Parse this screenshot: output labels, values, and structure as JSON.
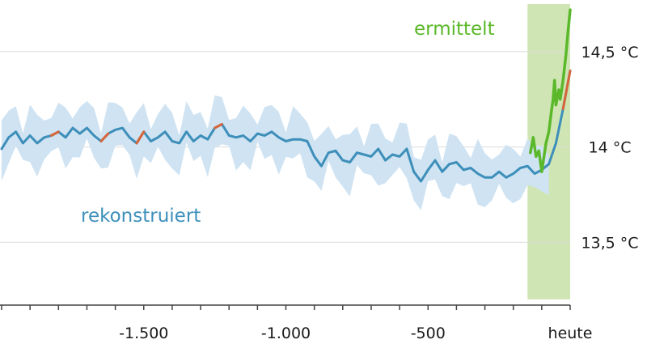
{
  "chart_data": {
    "type": "line",
    "title": "",
    "xlabel": "",
    "ylabel": "",
    "xlim": [
      -2000,
      0
    ],
    "ylim": [
      13.2,
      14.75
    ],
    "grid": true,
    "colors": {
      "reconstructed": "#3d8fba",
      "warm": "#d8663a",
      "band": "#cfe3f2",
      "measured": "#5bb82a",
      "measured_band": "#cfe6b4",
      "grid": "#dcdcdc",
      "axis": "#444444"
    },
    "x_ticks": [
      {
        "value": -1500,
        "label": "-1.500"
      },
      {
        "value": -1000,
        "label": "-1.000"
      },
      {
        "value": -500,
        "label": "-500"
      },
      {
        "value": 0,
        "label": "heute"
      }
    ],
    "y_ticks": [
      {
        "value": 14.5,
        "label": "14,5 °C"
      },
      {
        "value": 14.0,
        "label": "14 °C"
      },
      {
        "value": 13.5,
        "label": "13,5 °C"
      }
    ],
    "measured_period": [
      -150,
      0
    ],
    "series": [
      {
        "name": "rekonstruiert",
        "points": [
          [
            -2000,
            13.99
          ],
          [
            -1975,
            14.05
          ],
          [
            -1950,
            14.08
          ],
          [
            -1925,
            14.02
          ],
          [
            -1900,
            14.06
          ],
          [
            -1875,
            14.02
          ],
          [
            -1850,
            14.05
          ],
          [
            -1825,
            14.06
          ],
          [
            -1800,
            14.08
          ],
          [
            -1775,
            14.05
          ],
          [
            -1750,
            14.1
          ],
          [
            -1725,
            14.07
          ],
          [
            -1700,
            14.1
          ],
          [
            -1675,
            14.06
          ],
          [
            -1650,
            14.03
          ],
          [
            -1625,
            14.07
          ],
          [
            -1600,
            14.09
          ],
          [
            -1575,
            14.1
          ],
          [
            -1550,
            14.05
          ],
          [
            -1525,
            14.02
          ],
          [
            -1500,
            14.08
          ],
          [
            -1475,
            14.03
          ],
          [
            -1450,
            14.05
          ],
          [
            -1425,
            14.08
          ],
          [
            -1400,
            14.03
          ],
          [
            -1375,
            14.02
          ],
          [
            -1350,
            14.08
          ],
          [
            -1325,
            14.03
          ],
          [
            -1300,
            14.06
          ],
          [
            -1275,
            14.04
          ],
          [
            -1250,
            14.1
          ],
          [
            -1225,
            14.12
          ],
          [
            -1200,
            14.06
          ],
          [
            -1175,
            14.05
          ],
          [
            -1150,
            14.06
          ],
          [
            -1125,
            14.03
          ],
          [
            -1100,
            14.07
          ],
          [
            -1075,
            14.06
          ],
          [
            -1050,
            14.08
          ],
          [
            -1025,
            14.05
          ],
          [
            -1000,
            14.03
          ],
          [
            -975,
            14.04
          ],
          [
            -950,
            14.04
          ],
          [
            -925,
            14.03
          ],
          [
            -900,
            13.95
          ],
          [
            -875,
            13.9
          ],
          [
            -850,
            13.97
          ],
          [
            -825,
            13.98
          ],
          [
            -800,
            13.93
          ],
          [
            -775,
            13.92
          ],
          [
            -750,
            13.97
          ],
          [
            -725,
            13.96
          ],
          [
            -700,
            13.95
          ],
          [
            -675,
            13.99
          ],
          [
            -650,
            13.93
          ],
          [
            -625,
            13.96
          ],
          [
            -600,
            13.95
          ],
          [
            -575,
            13.99
          ],
          [
            -550,
            13.87
          ],
          [
            -525,
            13.82
          ],
          [
            -500,
            13.88
          ],
          [
            -475,
            13.93
          ],
          [
            -450,
            13.87
          ],
          [
            -425,
            13.91
          ],
          [
            -400,
            13.92
          ],
          [
            -375,
            13.88
          ],
          [
            -350,
            13.89
          ],
          [
            -325,
            13.86
          ],
          [
            -300,
            13.84
          ],
          [
            -275,
            13.84
          ],
          [
            -250,
            13.87
          ],
          [
            -225,
            13.84
          ],
          [
            -200,
            13.86
          ],
          [
            -175,
            13.89
          ],
          [
            -150,
            13.9
          ],
          [
            -125,
            13.86
          ],
          [
            -100,
            13.88
          ],
          [
            -75,
            13.91
          ],
          [
            -50,
            14.02
          ],
          [
            -25,
            14.2
          ],
          [
            0,
            14.4
          ]
        ]
      },
      {
        "name": "ermittelt",
        "points": [
          [
            -140,
            13.97
          ],
          [
            -130,
            14.05
          ],
          [
            -120,
            13.95
          ],
          [
            -110,
            13.98
          ],
          [
            -100,
            13.87
          ],
          [
            -95,
            13.92
          ],
          [
            -85,
            14.02
          ],
          [
            -75,
            14.08
          ],
          [
            -65,
            14.2
          ],
          [
            -60,
            14.25
          ],
          [
            -55,
            14.35
          ],
          [
            -50,
            14.22
          ],
          [
            -40,
            14.3
          ],
          [
            -35,
            14.25
          ],
          [
            -25,
            14.35
          ],
          [
            -15,
            14.48
          ],
          [
            -8,
            14.6
          ],
          [
            0,
            14.72
          ]
        ]
      }
    ],
    "warm_segments": [
      [
        -1825,
        -1790
      ],
      [
        -1650,
        -1625
      ],
      [
        -1515,
        -1490
      ],
      [
        -1250,
        -1215
      ],
      [
        -15,
        0
      ]
    ],
    "labels": {
      "reconstructed": "rekonstruiert",
      "measured": "ermittelt"
    }
  }
}
